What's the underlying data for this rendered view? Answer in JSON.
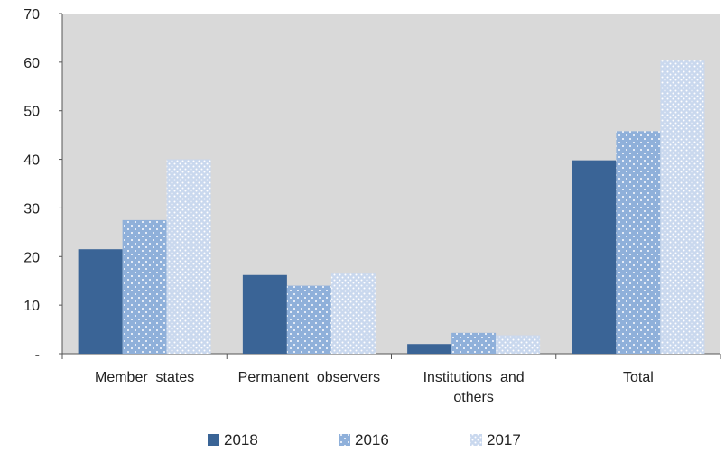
{
  "chart_data": {
    "type": "bar",
    "title": "",
    "xlabel": "",
    "ylabel": "",
    "ylim": [
      0,
      70
    ],
    "y_ticks": [
      "-",
      "10",
      "20",
      "30",
      "40",
      "50",
      "60",
      "70"
    ],
    "categories": [
      [
        "Member  states"
      ],
      [
        "Permanent  observers"
      ],
      [
        "Institutions  and",
        "others"
      ],
      [
        "Total"
      ]
    ],
    "series": [
      {
        "name": "2018",
        "values": [
          21.5,
          16.2,
          2.0,
          39.8
        ],
        "color": "#3a6496",
        "pattern": "solid"
      },
      {
        "name": "2016",
        "values": [
          27.5,
          14.0,
          4.3,
          45.8
        ],
        "color": "#8fb0da",
        "pattern": "dots"
      },
      {
        "name": "2017",
        "values": [
          40.0,
          16.5,
          3.8,
          60.3
        ],
        "color": "#c9d8ee",
        "pattern": "dots-light"
      }
    ],
    "plot_background": "#d9d9d9",
    "grid": false,
    "legend_position": "bottom"
  }
}
